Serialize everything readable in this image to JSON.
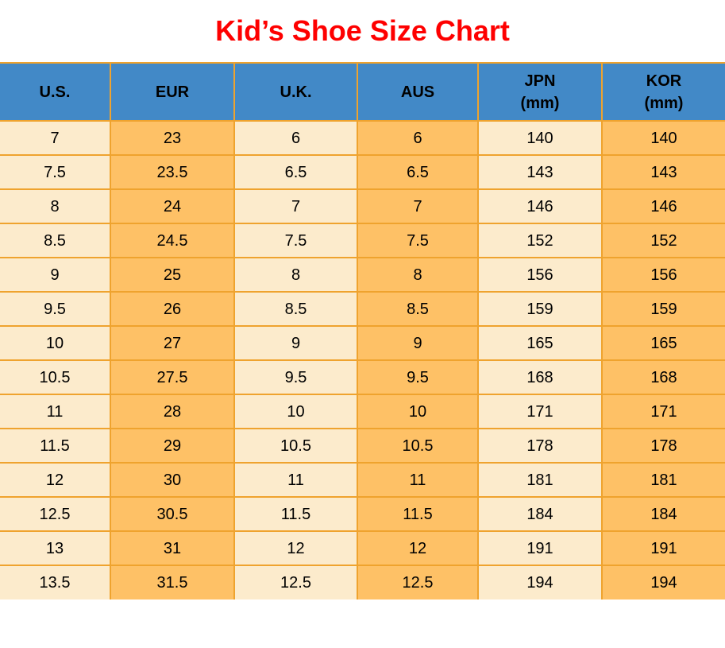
{
  "title": {
    "text": "Kid’s Shoe Size Chart"
  },
  "colors": {
    "title": "#fe0000",
    "header_bg": "#4289c7",
    "border": "#efa32e",
    "column_light": "#fcebcc",
    "column_orange": "#fec166",
    "text": "#000000"
  },
  "table": {
    "headers": [
      "U.S.",
      "EUR",
      "U.K.",
      "AUS",
      "JPN\n(mm)",
      "KOR\n(mm)"
    ]
  },
  "chart_data": {
    "type": "table",
    "title": "Kid’s Shoe Size Chart",
    "columns": [
      "U.S.",
      "EUR",
      "U.K.",
      "AUS",
      "JPN (mm)",
      "KOR (mm)"
    ],
    "rows": [
      [
        7,
        23,
        6,
        6,
        140,
        140
      ],
      [
        7.5,
        23.5,
        6.5,
        6.5,
        143,
        143
      ],
      [
        8,
        24,
        7,
        7,
        146,
        146
      ],
      [
        8.5,
        24.5,
        7.5,
        7.5,
        152,
        152
      ],
      [
        9,
        25,
        8,
        8,
        156,
        156
      ],
      [
        9.5,
        26,
        8.5,
        8.5,
        159,
        159
      ],
      [
        10,
        27,
        9,
        9,
        165,
        165
      ],
      [
        10.5,
        27.5,
        9.5,
        9.5,
        168,
        168
      ],
      [
        11,
        28,
        10,
        10,
        171,
        171
      ],
      [
        11.5,
        29,
        10.5,
        10.5,
        178,
        178
      ],
      [
        12,
        30,
        11,
        11,
        181,
        181
      ],
      [
        12.5,
        30.5,
        11.5,
        11.5,
        184,
        184
      ],
      [
        13,
        31,
        12,
        12,
        191,
        191
      ],
      [
        13.5,
        31.5,
        12.5,
        12.5,
        194,
        194
      ]
    ],
    "layout": {
      "header_position": "top",
      "grid": true
    }
  }
}
